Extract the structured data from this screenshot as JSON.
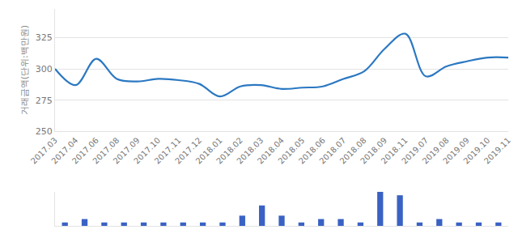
{
  "chart_data": [
    {
      "type": "line",
      "y_label": "거래금액(단위:백만원)",
      "categories": [
        "2017.03",
        "2017.04",
        "2017.06",
        "2017.08",
        "2017.09",
        "2017.10",
        "2017.11",
        "2017.12",
        "2018.01",
        "2018.02",
        "2018.03",
        "2018.04",
        "2018.05",
        "2018.06",
        "2018.07",
        "2018.08",
        "2018.09",
        "2018.11",
        "2019.07",
        "2019.08",
        "2019.09",
        "2019.10",
        "2019.11"
      ],
      "values": [
        300,
        287,
        308,
        292,
        290,
        292,
        291,
        288,
        278,
        286,
        287,
        284,
        285,
        286,
        292,
        298,
        316,
        328,
        294,
        302,
        306,
        309,
        309
      ],
      "color": "#2b78c2",
      "ylim": [
        250,
        348
      ],
      "yticks": [
        250,
        275,
        300,
        325
      ],
      "grid": true
    },
    {
      "type": "bar",
      "categories": [
        "2017.03",
        "2017.04",
        "2017.06",
        "2017.08",
        "2017.09",
        "2017.10",
        "2017.11",
        "2017.12",
        "2018.01",
        "2018.02",
        "2018.03",
        "2018.04",
        "2018.05",
        "2018.06",
        "2018.07",
        "2018.08",
        "2018.09",
        "2018.11",
        "2019.07",
        "2019.08",
        "2019.09",
        "2019.10",
        "2019.11"
      ],
      "values": [
        1,
        2,
        1,
        1,
        1,
        1,
        1,
        1,
        1,
        3,
        6,
        3,
        1,
        2,
        2,
        1,
        10,
        9,
        1,
        2,
        1,
        1,
        1
      ],
      "color": "#3a62c4",
      "ylim": [
        0,
        10
      ],
      "yticks": [],
      "tick_labels": false,
      "grid": false
    }
  ]
}
